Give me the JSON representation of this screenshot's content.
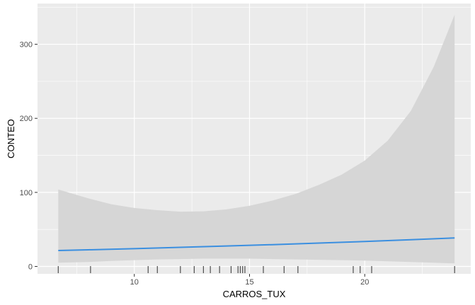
{
  "chart_data": {
    "type": "line",
    "title": "",
    "xlabel": "CARROS_TUX",
    "ylabel": "CONTEO",
    "xlim": [
      5.8,
      24.6
    ],
    "ylim": [
      -10,
      355
    ],
    "x_ticks": [
      10,
      15,
      20
    ],
    "y_ticks": [
      0,
      100,
      200,
      300
    ],
    "grid": true,
    "colors": {
      "panel": "#ebebeb",
      "grid": "#ffffff",
      "ribbon": "#d6d6d6",
      "line": "#3b8fe0",
      "rug": "#4d4d4d"
    },
    "fit_line": {
      "x": [
        6.7,
        8,
        10,
        12,
        14,
        16,
        18,
        20,
        22,
        23.9
      ],
      "y": [
        21.5,
        22.5,
        24,
        25.8,
        27.6,
        29.5,
        31.6,
        33.7,
        36.1,
        38.5
      ]
    },
    "confidence_band": {
      "x": [
        6.7,
        8,
        9,
        10,
        11,
        12,
        13,
        14,
        15,
        16,
        17,
        18,
        19,
        20,
        21,
        22,
        23,
        23.9
      ],
      "upper": [
        104,
        92,
        84,
        79,
        76,
        74,
        74.5,
        77,
        82,
        89,
        98,
        110,
        124,
        143,
        170,
        210,
        270,
        340
      ],
      "lower": [
        5,
        6,
        7.5,
        8.5,
        9.5,
        10,
        10.5,
        10.5,
        10.5,
        10,
        9.5,
        9,
        8.5,
        8,
        7,
        6,
        5,
        4
      ]
    },
    "rug_x": [
      6.7,
      8.1,
      10.6,
      11,
      12,
      12.6,
      13,
      13.3,
      13.7,
      14.2,
      14.5,
      14.6,
      14.7,
      14.8,
      15.6,
      16.5,
      17.1,
      19.5,
      19.8,
      20.3,
      23.9
    ]
  }
}
